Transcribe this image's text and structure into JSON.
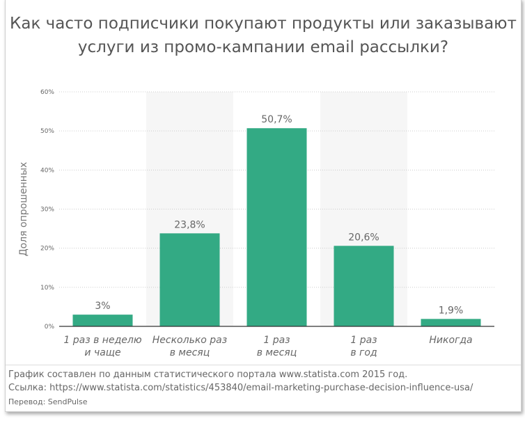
{
  "chart_data": {
    "type": "bar",
    "title": "Как часто подписчики покупают продукты или заказывают услуги из промо-кампании email рассылки?",
    "title_lines": [
      "Как часто подписчики покупают продукты или заказывают",
      "услуги из промо-кампании email рассылки?"
    ],
    "ylabel": "Доля опрошенных",
    "xlabel": "",
    "ylim": [
      0,
      60
    ],
    "yticks": [
      "0%",
      "10%",
      "20%",
      "30%",
      "40%",
      "50%",
      "60%"
    ],
    "categories": [
      [
        "1 раз в неделю",
        "и чаще"
      ],
      [
        "Несколько раз",
        "в месяц"
      ],
      [
        "1 раз",
        "в месяц"
      ],
      [
        "1 раз",
        "в год"
      ],
      [
        "Никогда"
      ]
    ],
    "values": [
      3,
      23.8,
      50.7,
      20.6,
      1.9
    ],
    "data_labels": [
      "3%",
      "23,8%",
      "50,7%",
      "20,6%",
      "1,9%"
    ],
    "grid": true,
    "bar_color": "#33aa84"
  },
  "footer": {
    "source": "График составлен по данным статистического портала www.statista.com 2015 год.",
    "link": "Ссылка: https://www.statista.com/statistics/453840/email-marketing-purchase-decision-influence-usa/",
    "translation": "Перевод: SendPulse"
  }
}
